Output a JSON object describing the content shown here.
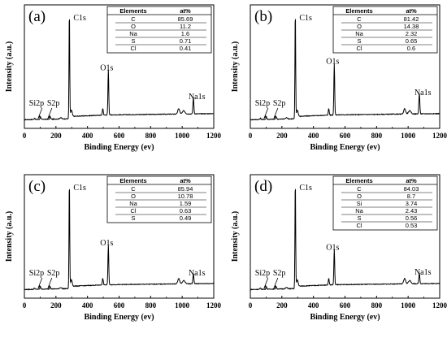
{
  "chart_data": [
    {
      "type": "line",
      "panel_label": "(a)",
      "xlabel": "Binding Energy (ev)",
      "ylabel": "Intensity (a.u.)",
      "xlim": [
        0,
        1200
      ],
      "x_ticks": [
        "0",
        "200",
        "400",
        "600",
        "800",
        "1000",
        "1200"
      ],
      "grid": false,
      "peaks": [
        {
          "label": "C1s",
          "x": 285,
          "height": 1.0
        },
        {
          "label": "O1s",
          "x": 532,
          "height": 0.42
        },
        {
          "label": "Na1s",
          "x": 1071,
          "height": 0.15
        },
        {
          "label": "Si2p",
          "x": 102,
          "height": 0.02
        },
        {
          "label": "S2p",
          "x": 164,
          "height": 0.02
        }
      ],
      "table": {
        "headers": [
          "Elements",
          "at%"
        ],
        "rows": [
          [
            "C",
            "85.69"
          ],
          [
            "O",
            "11.2"
          ],
          [
            "Na",
            "1.6"
          ],
          [
            "S",
            "0.71"
          ],
          [
            "Cl",
            "0.41"
          ]
        ]
      }
    },
    {
      "type": "line",
      "panel_label": "(b)",
      "xlabel": "Binding Energy (ev)",
      "ylabel": "Intensity (a.u.)",
      "xlim": [
        0,
        1200
      ],
      "x_ticks": [
        "0",
        "200",
        "400",
        "600",
        "800",
        "1000",
        "1200"
      ],
      "grid": false,
      "peaks": [
        {
          "label": "C1s",
          "x": 285,
          "height": 1.0
        },
        {
          "label": "O1s",
          "x": 532,
          "height": 0.48
        },
        {
          "label": "Na1s",
          "x": 1071,
          "height": 0.19
        },
        {
          "label": "Si2p",
          "x": 102,
          "height": 0.02
        },
        {
          "label": "S2p",
          "x": 164,
          "height": 0.02
        }
      ],
      "table": {
        "headers": [
          "Elements",
          "at%"
        ],
        "rows": [
          [
            "C",
            "81.42"
          ],
          [
            "O",
            "14.38"
          ],
          [
            "Na",
            "2.32"
          ],
          [
            "S",
            "0.65"
          ],
          [
            "Cl",
            "0.6"
          ]
        ]
      }
    },
    {
      "type": "line",
      "panel_label": "(c)",
      "xlabel": "Binding Energy (ev)",
      "ylabel": "Intensity (a.u.)",
      "xlim": [
        0,
        1200
      ],
      "x_ticks": [
        "0",
        "200",
        "400",
        "600",
        "800",
        "1000",
        "1200"
      ],
      "grid": false,
      "peaks": [
        {
          "label": "C1s",
          "x": 285,
          "height": 1.0
        },
        {
          "label": "O1s",
          "x": 532,
          "height": 0.37
        },
        {
          "label": "Na1s",
          "x": 1071,
          "height": 0.09
        },
        {
          "label": "Si2p",
          "x": 102,
          "height": 0.02
        },
        {
          "label": "S2p",
          "x": 164,
          "height": 0.02
        }
      ],
      "table": {
        "headers": [
          "Elements",
          "at%"
        ],
        "rows": [
          [
            "C",
            "85.94"
          ],
          [
            "O",
            "10.78"
          ],
          [
            "Na",
            "1.59"
          ],
          [
            "Cl",
            "0.63"
          ],
          [
            "S",
            "0.49"
          ]
        ]
      }
    },
    {
      "type": "line",
      "panel_label": "(d)",
      "xlabel": "Binding Energy (ev)",
      "ylabel": "Intensity (a.u.)",
      "xlim": [
        0,
        1200
      ],
      "x_ticks": [
        "0",
        "200",
        "400",
        "600",
        "800",
        "1000",
        "1200"
      ],
      "grid": false,
      "peaks": [
        {
          "label": "C1s",
          "x": 285,
          "height": 1.0
        },
        {
          "label": "O1s",
          "x": 532,
          "height": 0.33
        },
        {
          "label": "Na1s",
          "x": 1071,
          "height": 0.1
        },
        {
          "label": "Si2p",
          "x": 102,
          "height": 0.02
        },
        {
          "label": "S2p",
          "x": 164,
          "height": 0.02
        }
      ],
      "table": {
        "headers": [
          "Elements",
          "at%"
        ],
        "rows": [
          [
            "C",
            "84.03"
          ],
          [
            "O",
            "8.7"
          ],
          [
            "Si",
            "3.74"
          ],
          [
            "Na",
            "2.43"
          ],
          [
            "S",
            "0.56"
          ],
          [
            "Cl",
            "0.53"
          ]
        ]
      }
    }
  ],
  "colors": {
    "line": "#000000",
    "background": "#ffffff"
  }
}
